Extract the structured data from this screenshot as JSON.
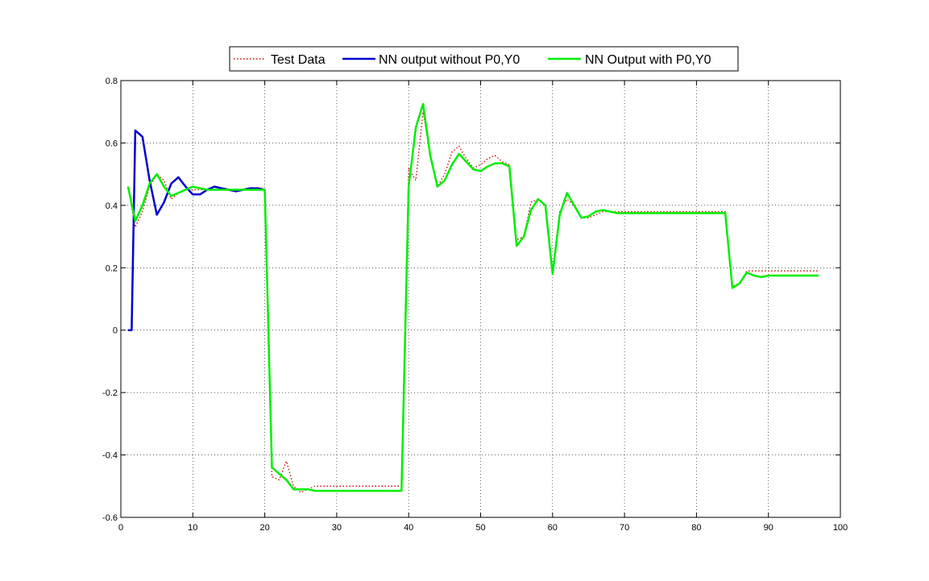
{
  "colors": {
    "background": "#ffffff",
    "axes": "#000000",
    "grid": "#000000",
    "test_data": "#cc0000",
    "nn_without": "#0000cc",
    "nn_with": "#00ee00"
  },
  "chart_data": {
    "type": "line",
    "title": "",
    "xlabel": "",
    "ylabel": "",
    "xlim": [
      0,
      100
    ],
    "ylim": [
      -0.6,
      0.8
    ],
    "xticks": [
      0,
      10,
      20,
      30,
      40,
      50,
      60,
      70,
      80,
      90,
      100
    ],
    "yticks": [
      -0.6,
      -0.4,
      -0.2,
      0,
      0.2,
      0.4,
      0.6,
      0.8
    ],
    "xtick_labels": [
      "0",
      "10",
      "20",
      "30",
      "40",
      "50",
      "60",
      "70",
      "80",
      "90",
      "100"
    ],
    "ytick_labels": [
      "-0.6",
      "-0.4",
      "-0.2",
      "0",
      "0.2",
      "0.4",
      "0.6",
      "0.8"
    ],
    "grid": true,
    "legend_position": "top-center",
    "series": [
      {
        "name": "Test Data",
        "key": "test_data",
        "style": "dotted",
        "x": [
          1,
          2,
          3,
          4,
          5,
          6,
          7,
          8,
          9,
          10,
          11,
          12,
          13,
          14,
          15,
          16,
          17,
          18,
          19,
          20,
          21,
          22,
          23,
          24,
          25,
          26,
          27,
          28,
          29,
          30,
          31,
          32,
          33,
          34,
          35,
          36,
          37,
          38,
          39,
          40,
          41,
          42,
          43,
          44,
          45,
          46,
          47,
          48,
          49,
          50,
          51,
          52,
          53,
          54,
          55,
          56,
          57,
          58,
          59,
          60,
          61,
          62,
          63,
          64,
          65,
          66,
          67,
          68,
          69,
          70,
          75,
          80,
          84,
          85,
          86,
          87,
          88,
          89,
          90,
          95,
          97
        ],
        "y": [
          0.46,
          0.33,
          0.38,
          0.46,
          0.5,
          0.48,
          0.42,
          0.44,
          0.45,
          0.45,
          0.45,
          0.45,
          0.45,
          0.45,
          0.45,
          0.45,
          0.45,
          0.45,
          0.45,
          0.45,
          -0.47,
          -0.48,
          -0.42,
          -0.5,
          -0.52,
          -0.51,
          -0.5,
          -0.5,
          -0.5,
          -0.5,
          -0.5,
          -0.5,
          -0.5,
          -0.5,
          -0.5,
          -0.5,
          -0.5,
          -0.5,
          -0.5,
          0.52,
          0.48,
          0.7,
          0.56,
          0.46,
          0.5,
          0.57,
          0.59,
          0.55,
          0.52,
          0.53,
          0.55,
          0.56,
          0.54,
          0.53,
          0.29,
          0.3,
          0.41,
          0.42,
          0.4,
          0.18,
          0.38,
          0.42,
          0.4,
          0.36,
          0.36,
          0.37,
          0.38,
          0.38,
          0.38,
          0.38,
          0.38,
          0.38,
          0.38,
          0.14,
          0.15,
          0.19,
          0.19,
          0.19,
          0.19,
          0.19,
          0.19
        ]
      },
      {
        "name": "NN output without P0,Y0",
        "key": "nn_without",
        "style": "solid",
        "x": [
          1,
          1.5,
          2,
          3,
          4,
          5,
          6,
          7,
          8,
          9,
          10,
          11,
          12,
          13,
          14,
          15,
          16,
          17,
          18,
          19,
          20
        ],
        "y": [
          0,
          0,
          0.64,
          0.62,
          0.48,
          0.37,
          0.41,
          0.47,
          0.49,
          0.46,
          0.435,
          0.435,
          0.45,
          0.46,
          0.455,
          0.45,
          0.445,
          0.45,
          0.455,
          0.455,
          0.45
        ]
      },
      {
        "name": "NN Output with P0,Y0",
        "key": "nn_with",
        "style": "solid",
        "x": [
          1,
          2,
          3,
          4,
          5,
          6,
          7,
          8,
          9,
          10,
          11,
          12,
          13,
          14,
          15,
          16,
          17,
          18,
          19,
          20,
          21,
          22,
          23,
          24,
          25,
          26,
          27,
          28,
          29,
          30,
          31,
          32,
          33,
          34,
          35,
          36,
          37,
          38,
          39,
          40,
          41,
          42,
          43,
          44,
          45,
          46,
          47,
          48,
          49,
          50,
          51,
          52,
          53,
          54,
          55,
          56,
          57,
          58,
          59,
          60,
          61,
          62,
          63,
          64,
          65,
          66,
          67,
          68,
          69,
          70,
          75,
          80,
          84,
          85,
          86,
          87,
          88,
          89,
          90,
          95,
          97
        ],
        "y": [
          0.46,
          0.35,
          0.4,
          0.47,
          0.5,
          0.46,
          0.43,
          0.44,
          0.45,
          0.46,
          0.455,
          0.45,
          0.45,
          0.45,
          0.45,
          0.45,
          0.45,
          0.45,
          0.45,
          0.45,
          -0.44,
          -0.46,
          -0.48,
          -0.51,
          -0.51,
          -0.51,
          -0.515,
          -0.515,
          -0.515,
          -0.515,
          -0.515,
          -0.515,
          -0.515,
          -0.515,
          -0.515,
          -0.515,
          -0.515,
          -0.515,
          -0.515,
          0.46,
          0.65,
          0.725,
          0.56,
          0.46,
          0.48,
          0.53,
          0.565,
          0.54,
          0.515,
          0.51,
          0.525,
          0.535,
          0.535,
          0.525,
          0.27,
          0.3,
          0.385,
          0.42,
          0.4,
          0.18,
          0.37,
          0.44,
          0.4,
          0.36,
          0.365,
          0.38,
          0.385,
          0.38,
          0.375,
          0.375,
          0.375,
          0.375,
          0.375,
          0.135,
          0.15,
          0.185,
          0.175,
          0.17,
          0.175,
          0.175,
          0.175
        ]
      }
    ]
  }
}
